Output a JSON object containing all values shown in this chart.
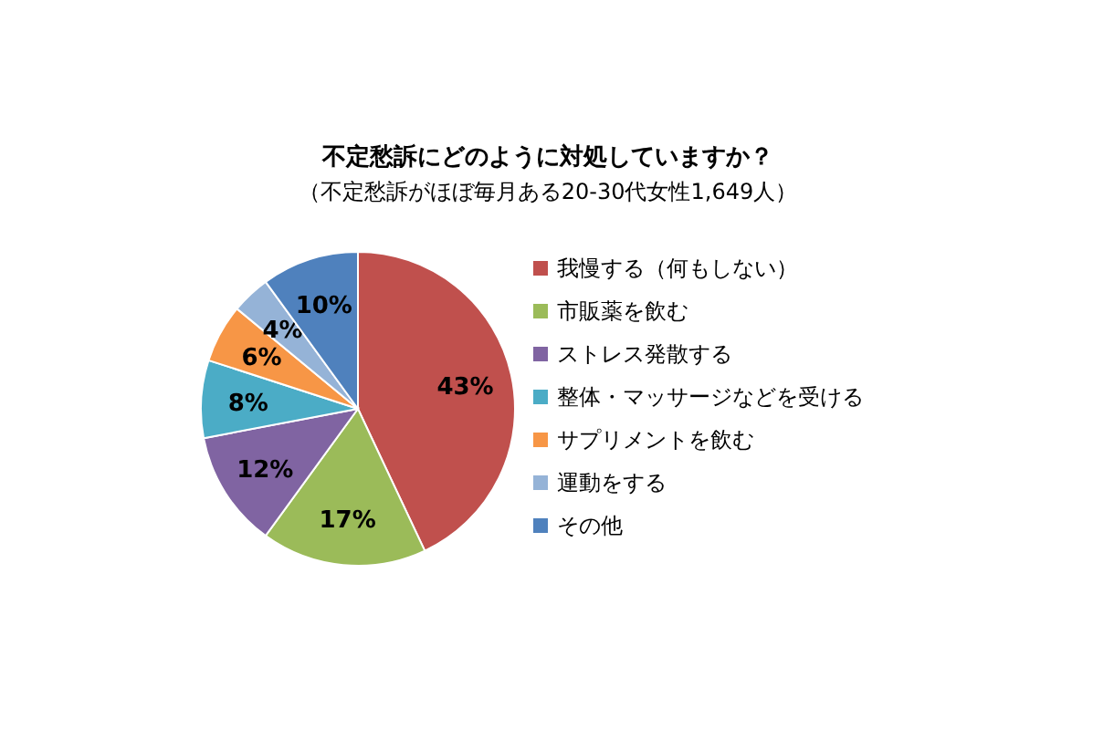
{
  "chart_data": {
    "type": "pie",
    "title": "不定愁訴にどのように対処していますか？",
    "subtitle": "（不定愁訴がほぼ毎月ある20-30代女性1,649人）",
    "categories": [
      "我慢する（何もしない）",
      "市販薬を飲む",
      "ストレス発散する",
      "整体・マッサージなどを受ける",
      "サプリメントを飲む",
      "運動をする",
      "その他"
    ],
    "values": [
      43,
      17,
      12,
      8,
      6,
      4,
      10
    ],
    "colors": [
      "#c0504d",
      "#9bbb59",
      "#8064a2",
      "#4bacc6",
      "#f79646",
      "#95b3d7",
      "#4f81bd"
    ],
    "value_labels": [
      "43%",
      "17%",
      "12%",
      "8%",
      "6%",
      "4%",
      "10%"
    ],
    "legend": "right"
  }
}
